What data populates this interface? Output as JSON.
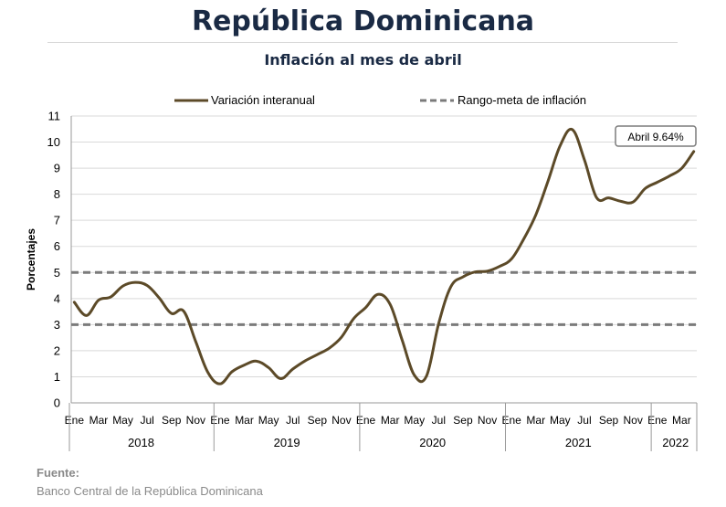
{
  "header": {
    "title": "República Dominicana",
    "subtitle": "Inflación al mes de abril"
  },
  "source": {
    "label": "Fuente:",
    "text": "Banco Central de la República Dominicana"
  },
  "chart_data": {
    "type": "line",
    "ylabel": "Porcentajes",
    "ylim": [
      0,
      11
    ],
    "yticks": [
      0,
      1,
      2,
      3,
      4,
      5,
      6,
      7,
      8,
      9,
      10,
      11
    ],
    "grid": true,
    "legend_position": "top",
    "legend": [
      "Variación interanual",
      "Rango-meta de inflación"
    ],
    "month_ticks": [
      "Ene",
      "Mar",
      "May",
      "Jul",
      "Sep",
      "Nov",
      "Ene",
      "Mar",
      "May",
      "Jul",
      "Sep",
      "Nov",
      "Ene",
      "Mar",
      "May",
      "Jul",
      "Sep",
      "Nov",
      "Ene",
      "Mar",
      "May",
      "Jul",
      "Sep",
      "Nov",
      "Ene",
      "Mar"
    ],
    "years": [
      {
        "label": "2018",
        "months": 12
      },
      {
        "label": "2019",
        "months": 12
      },
      {
        "label": "2020",
        "months": 12
      },
      {
        "label": "2021",
        "months": 12
      },
      {
        "label": "2022",
        "months": 4
      }
    ],
    "series": [
      {
        "name": "Variación interanual",
        "color": "#5c4a28",
        "values": [
          3.86,
          3.35,
          3.94,
          4.06,
          4.48,
          4.62,
          4.5,
          4.02,
          3.43,
          3.52,
          2.35,
          1.17,
          0.73,
          1.2,
          1.45,
          1.6,
          1.35,
          0.93,
          1.3,
          1.61,
          1.85,
          2.1,
          2.52,
          3.23,
          3.66,
          4.16,
          3.78,
          2.4,
          1.06,
          1.03,
          3.04,
          4.45,
          4.83,
          5.02,
          5.05,
          5.23,
          5.52,
          6.28,
          7.21,
          8.5,
          9.86,
          10.48,
          9.32,
          7.87,
          7.86,
          7.73,
          7.7,
          8.22,
          8.46,
          8.7,
          8.99,
          9.64
        ]
      }
    ],
    "target_band": {
      "name": "Rango-meta de inflación",
      "color": "#7b7b7b",
      "lower": 3,
      "upper": 5
    },
    "annotation": {
      "text": "Abril 9.64%",
      "x_index": 51,
      "value": 9.64
    }
  }
}
